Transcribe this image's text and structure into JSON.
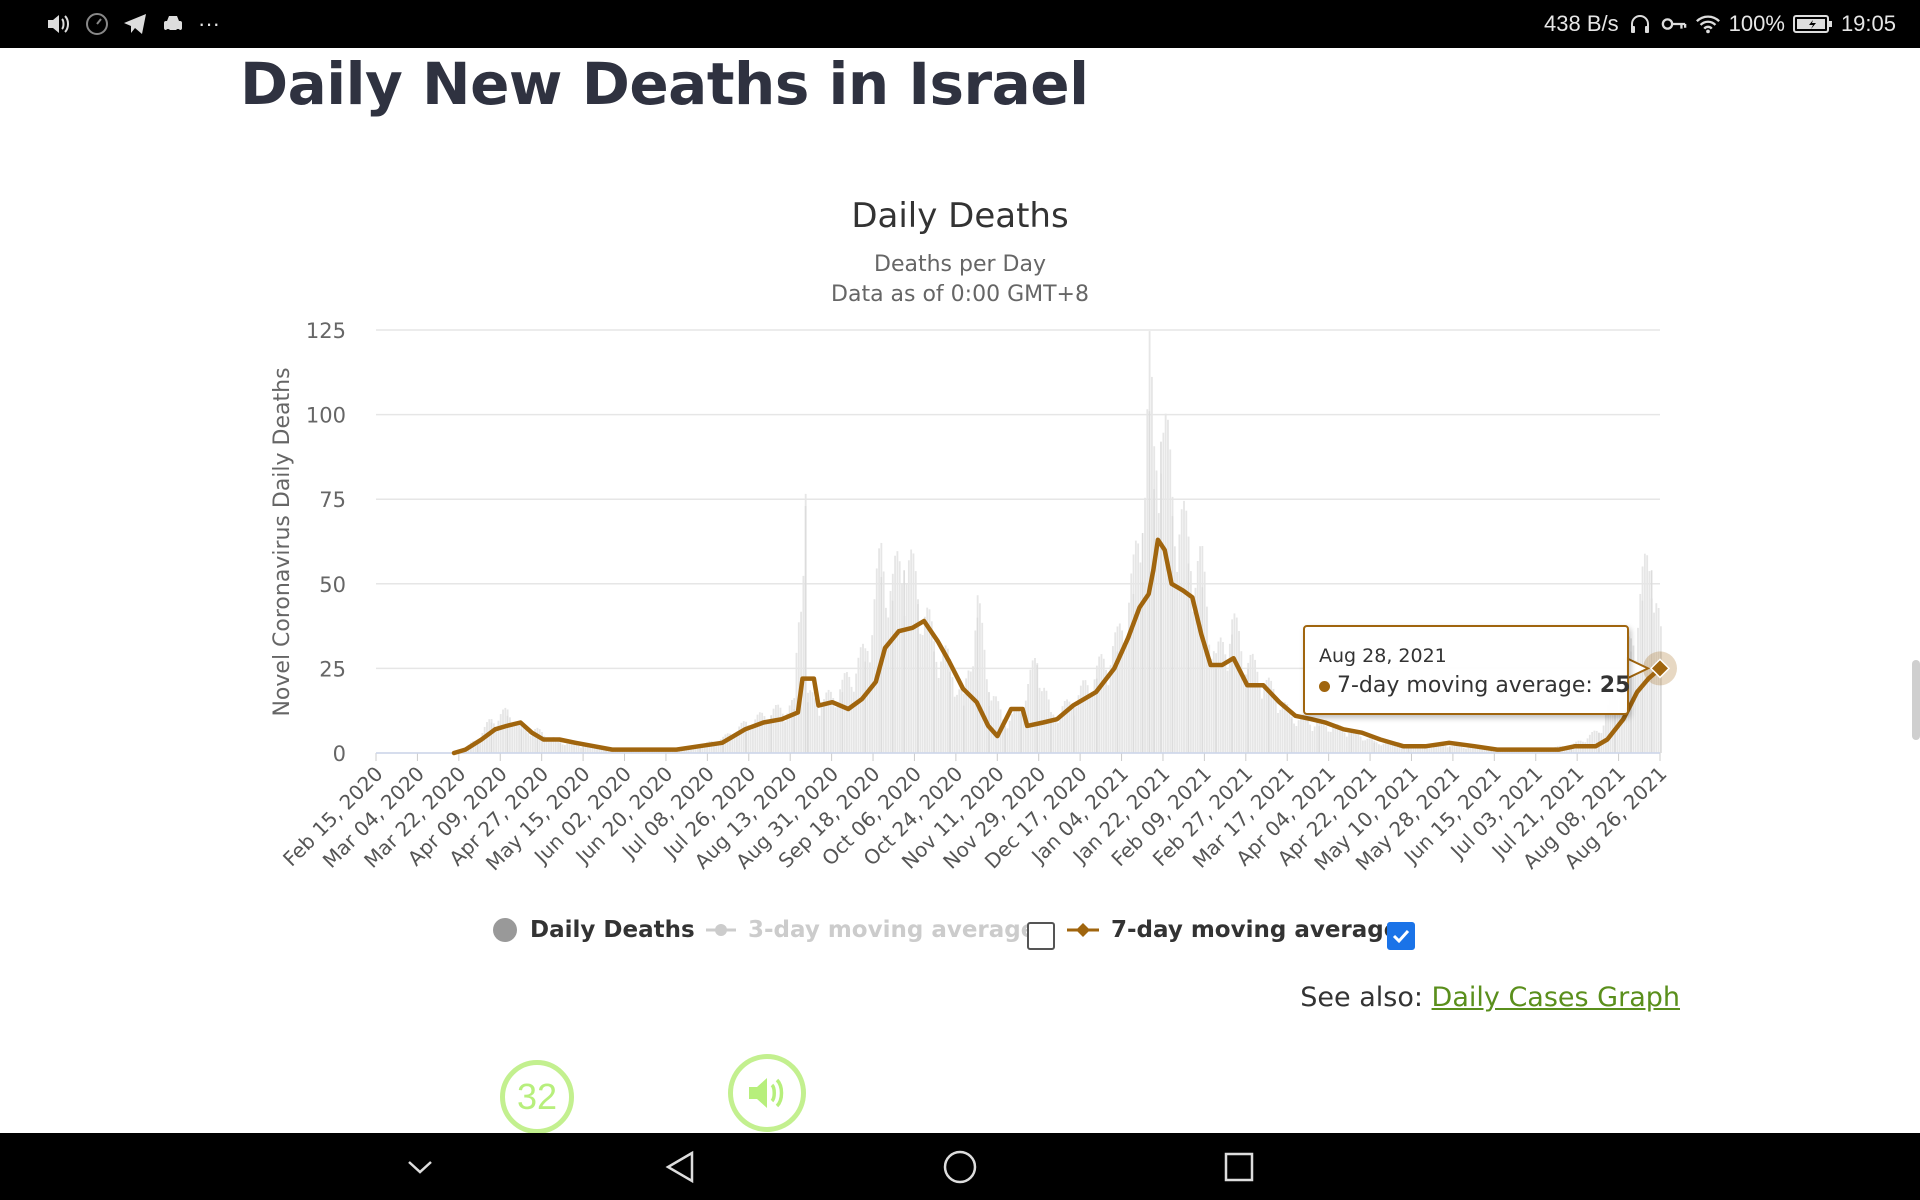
{
  "status_bar": {
    "left_icons": [
      "volume-icon",
      "clock-icon",
      "telegram-icon",
      "car-icon",
      "more-icon"
    ],
    "more_text": "···",
    "net_speed": "438 B/s",
    "battery": "100%",
    "time": "19:05"
  },
  "page": {
    "title": "Daily New Deaths in Israel"
  },
  "colors": {
    "accent": "#a0650e",
    "bars": "#e6e6e6",
    "grid": "#e6e6e6",
    "link": "#5a8f1c",
    "checkbox": "#1a73e8"
  },
  "chart_data": {
    "type": "bar",
    "title": "Daily Deaths",
    "subtitle": [
      "Deaths per Day",
      "Data as of 0:00 GMT+8"
    ],
    "ylabel": "Novel Coronavirus Daily Deaths",
    "xlabel": "",
    "ylim": [
      0,
      125
    ],
    "yticks": [
      0,
      25,
      50,
      75,
      100,
      125
    ],
    "grid": true,
    "legend_position": "bottom",
    "x_start": "2020-02-15",
    "x_end": "2021-08-28",
    "x_ticks": [
      "Feb 15, 2020",
      "Mar 04, 2020",
      "Mar 22, 2020",
      "Apr 09, 2020",
      "Apr 27, 2020",
      "May 15, 2020",
      "Jun 02, 2020",
      "Jun 20, 2020",
      "Jul 08, 2020",
      "Jul 26, 2020",
      "Aug 13, 2020",
      "Aug 31, 2020",
      "Sep 18, 2020",
      "Oct 06, 2020",
      "Oct 24, 2020",
      "Nov 11, 2020",
      "Nov 29, 2020",
      "Dec 17, 2020",
      "Jan 04, 2021",
      "Jan 22, 2021",
      "Feb 09, 2021",
      "Feb 27, 2021",
      "Mar 17, 2021",
      "Apr 04, 2021",
      "Apr 22, 2021",
      "May 10, 2021",
      "May 28, 2021",
      "Jun 15, 2021",
      "Jul 03, 2021",
      "Jul 21, 2021",
      "Aug 08, 2021",
      "Aug 26, 2021"
    ],
    "series": [
      {
        "name": "Daily Deaths",
        "kind": "bar",
        "points": [
          [
            "2020-02-15",
            0
          ],
          [
            "2020-03-20",
            0
          ],
          [
            "2020-03-24",
            1
          ],
          [
            "2020-03-30",
            4
          ],
          [
            "2020-04-05",
            9
          ],
          [
            "2020-04-12",
            11
          ],
          [
            "2020-04-18",
            7
          ],
          [
            "2020-04-25",
            6
          ],
          [
            "2020-05-05",
            3
          ],
          [
            "2020-05-15",
            2
          ],
          [
            "2020-05-25",
            1
          ],
          [
            "2020-06-05",
            1
          ],
          [
            "2020-06-20",
            1
          ],
          [
            "2020-07-05",
            2
          ],
          [
            "2020-07-15",
            4
          ],
          [
            "2020-07-25",
            8
          ],
          [
            "2020-08-05",
            11
          ],
          [
            "2020-08-15",
            13
          ],
          [
            "2020-08-20",
            73
          ],
          [
            "2020-08-21",
            15
          ],
          [
            "2020-08-28",
            14
          ],
          [
            "2020-09-05",
            18
          ],
          [
            "2020-09-15",
            27
          ],
          [
            "2020-09-22",
            52
          ],
          [
            "2020-09-27",
            45
          ],
          [
            "2020-10-02",
            54
          ],
          [
            "2020-10-08",
            44
          ],
          [
            "2020-10-15",
            30
          ],
          [
            "2020-10-22",
            24
          ],
          [
            "2020-10-28",
            14
          ],
          [
            "2020-11-03",
            40
          ],
          [
            "2020-11-08",
            18
          ],
          [
            "2020-11-15",
            8
          ],
          [
            "2020-11-22",
            12
          ],
          [
            "2020-11-29",
            26
          ],
          [
            "2020-12-05",
            10
          ],
          [
            "2020-12-15",
            14
          ],
          [
            "2020-12-25",
            22
          ],
          [
            "2021-01-03",
            30
          ],
          [
            "2021-01-10",
            47
          ],
          [
            "2021-01-14",
            65
          ],
          [
            "2021-01-17",
            101
          ],
          [
            "2021-01-19",
            78
          ],
          [
            "2021-01-22",
            92
          ],
          [
            "2021-01-27",
            70
          ],
          [
            "2021-02-03",
            56
          ],
          [
            "2021-02-09",
            49
          ],
          [
            "2021-02-15",
            25
          ],
          [
            "2021-02-22",
            35
          ],
          [
            "2021-03-01",
            25
          ],
          [
            "2021-03-10",
            18
          ],
          [
            "2021-03-20",
            10
          ],
          [
            "2021-04-01",
            8
          ],
          [
            "2021-04-15",
            6
          ],
          [
            "2021-04-25",
            3
          ],
          [
            "2021-05-10",
            2
          ],
          [
            "2021-05-28",
            2
          ],
          [
            "2021-06-15",
            1
          ],
          [
            "2021-07-03",
            1
          ],
          [
            "2021-07-20",
            2
          ],
          [
            "2021-08-01",
            6
          ],
          [
            "2021-08-08",
            16
          ],
          [
            "2021-08-15",
            30
          ],
          [
            "2021-08-20",
            45
          ],
          [
            "2021-08-24",
            54
          ],
          [
            "2021-08-28",
            30
          ]
        ]
      },
      {
        "name": "3-day moving average",
        "kind": "line",
        "hidden": true,
        "points": []
      },
      {
        "name": "7-day moving average",
        "kind": "line",
        "points": [
          [
            "2020-03-20",
            0
          ],
          [
            "2020-03-25",
            1
          ],
          [
            "2020-04-01",
            4
          ],
          [
            "2020-04-07",
            7
          ],
          [
            "2020-04-12",
            8
          ],
          [
            "2020-04-18",
            9
          ],
          [
            "2020-04-23",
            6
          ],
          [
            "2020-04-28",
            4
          ],
          [
            "2020-05-05",
            4
          ],
          [
            "2020-05-12",
            3
          ],
          [
            "2020-05-20",
            2
          ],
          [
            "2020-05-28",
            1
          ],
          [
            "2020-06-05",
            1
          ],
          [
            "2020-06-15",
            1
          ],
          [
            "2020-06-25",
            1
          ],
          [
            "2020-07-05",
            2
          ],
          [
            "2020-07-15",
            3
          ],
          [
            "2020-07-25",
            7
          ],
          [
            "2020-08-02",
            9
          ],
          [
            "2020-08-10",
            10
          ],
          [
            "2020-08-17",
            12
          ],
          [
            "2020-08-19",
            22
          ],
          [
            "2020-08-24",
            22
          ],
          [
            "2020-08-26",
            14
          ],
          [
            "2020-09-01",
            15
          ],
          [
            "2020-09-08",
            13
          ],
          [
            "2020-09-14",
            16
          ],
          [
            "2020-09-20",
            21
          ],
          [
            "2020-09-24",
            31
          ],
          [
            "2020-09-30",
            36
          ],
          [
            "2020-10-06",
            37
          ],
          [
            "2020-10-11",
            39
          ],
          [
            "2020-10-17",
            33
          ],
          [
            "2020-10-22",
            27
          ],
          [
            "2020-10-28",
            19
          ],
          [
            "2020-11-03",
            15
          ],
          [
            "2020-11-08",
            8
          ],
          [
            "2020-11-12",
            5
          ],
          [
            "2020-11-18",
            13
          ],
          [
            "2020-11-23",
            13
          ],
          [
            "2020-11-25",
            8
          ],
          [
            "2020-12-02",
            9
          ],
          [
            "2020-12-08",
            10
          ],
          [
            "2020-12-15",
            14
          ],
          [
            "2020-12-25",
            18
          ],
          [
            "2021-01-02",
            25
          ],
          [
            "2021-01-08",
            34
          ],
          [
            "2021-01-13",
            43
          ],
          [
            "2021-01-17",
            47
          ],
          [
            "2021-01-19",
            54
          ],
          [
            "2021-01-21",
            63
          ],
          [
            "2021-01-24",
            60
          ],
          [
            "2021-01-27",
            50
          ],
          [
            "2021-02-01",
            48
          ],
          [
            "2021-02-05",
            46
          ],
          [
            "2021-02-09",
            35
          ],
          [
            "2021-02-13",
            26
          ],
          [
            "2021-02-18",
            26
          ],
          [
            "2021-02-23",
            28
          ],
          [
            "2021-03-01",
            20
          ],
          [
            "2021-03-08",
            20
          ],
          [
            "2021-03-15",
            15
          ],
          [
            "2021-03-22",
            11
          ],
          [
            "2021-03-29",
            10
          ],
          [
            "2021-04-04",
            9
          ],
          [
            "2021-04-12",
            7
          ],
          [
            "2021-04-20",
            6
          ],
          [
            "2021-04-28",
            4
          ],
          [
            "2021-05-08",
            2
          ],
          [
            "2021-05-18",
            2
          ],
          [
            "2021-05-28",
            3
          ],
          [
            "2021-06-08",
            2
          ],
          [
            "2021-06-18",
            1
          ],
          [
            "2021-06-28",
            1
          ],
          [
            "2021-07-08",
            1
          ],
          [
            "2021-07-15",
            1
          ],
          [
            "2021-07-22",
            2
          ],
          [
            "2021-07-31",
            2
          ],
          [
            "2021-08-05",
            4
          ],
          [
            "2021-08-12",
            10
          ],
          [
            "2021-08-18",
            18
          ],
          [
            "2021-08-23",
            22
          ],
          [
            "2021-08-28",
            25
          ]
        ]
      }
    ],
    "tooltip": {
      "date": "Aug 28, 2021",
      "series": "7-day moving average",
      "label": "7-day moving average: ",
      "value": 25
    }
  },
  "legend": {
    "daily": "Daily Deaths",
    "ma3": "3-day moving average",
    "ma7": "7-day moving average",
    "ma3_checked": false,
    "ma7_checked": true
  },
  "see_also": {
    "prefix": "See also: ",
    "link_text": "Daily Cases Graph"
  },
  "floating": {
    "counter": "32"
  },
  "nav": [
    "chevron-down-icon",
    "back-icon",
    "home-icon",
    "recents-icon"
  ]
}
